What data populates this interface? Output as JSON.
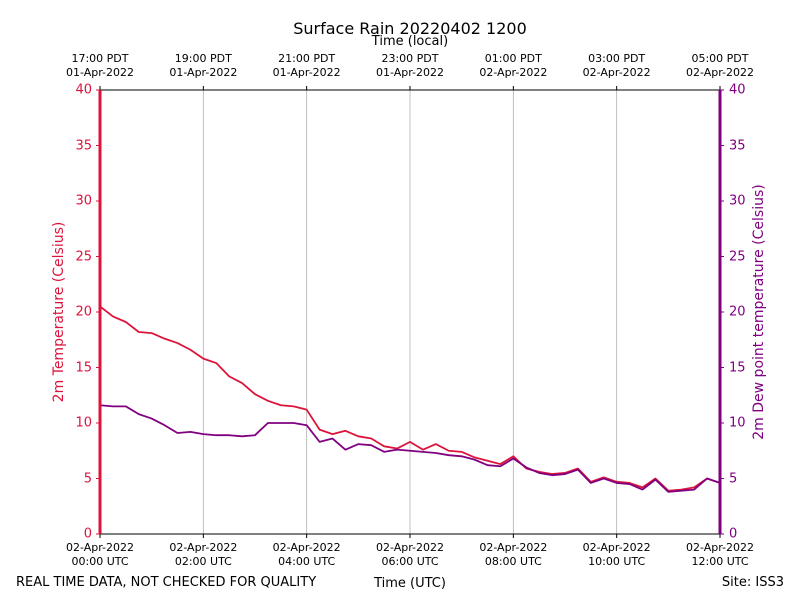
{
  "chart_data": {
    "type": "line",
    "title": "Surface Rain 20220402 1200",
    "xlabel": "Time (UTC)",
    "x2label": "Time (local)",
    "ylabel": "2m Temperature (Celsius)",
    "y2label": "2m Dew point temperature (Celsius)",
    "footer_left": "REAL TIME DATA, NOT CHECKED FOR QUALITY",
    "footer_right": "Site: ISS3",
    "grid": true,
    "xlim": [
      "2022-04-02T00:00Z",
      "2022-04-02T12:00Z"
    ],
    "xticks": [
      {
        "value": "2022-04-02T00:00Z",
        "label": "02-Apr-2022\n00:00 UTC"
      },
      {
        "value": "2022-04-02T02:00Z",
        "label": "02-Apr-2022\n02:00 UTC"
      },
      {
        "value": "2022-04-02T04:00Z",
        "label": "02-Apr-2022\n04:00 UTC"
      },
      {
        "value": "2022-04-02T06:00Z",
        "label": "02-Apr-2022\n06:00 UTC"
      },
      {
        "value": "2022-04-02T08:00Z",
        "label": "02-Apr-2022\n08:00 UTC"
      },
      {
        "value": "2022-04-02T10:00Z",
        "label": "02-Apr-2022\n10:00 UTC"
      },
      {
        "value": "2022-04-02T12:00Z",
        "label": "02-Apr-2022\n12:00 UTC"
      }
    ],
    "x2ticks": [
      {
        "value": "2022-04-02T00:00Z",
        "label": "17:00 PDT\n01-Apr-2022"
      },
      {
        "value": "2022-04-02T02:00Z",
        "label": "19:00 PDT\n01-Apr-2022"
      },
      {
        "value": "2022-04-02T04:00Z",
        "label": "21:00 PDT\n01-Apr-2022"
      },
      {
        "value": "2022-04-02T06:00Z",
        "label": "23:00 PDT\n01-Apr-2022"
      },
      {
        "value": "2022-04-02T08:00Z",
        "label": "01:00 PDT\n02-Apr-2022"
      },
      {
        "value": "2022-04-02T10:00Z",
        "label": "03:00 PDT\n02-Apr-2022"
      },
      {
        "value": "2022-04-02T12:00Z",
        "label": "05:00 PDT\n02-Apr-2022"
      }
    ],
    "ylim": [
      0,
      40
    ],
    "yticks": [
      0,
      5,
      10,
      15,
      20,
      25,
      30,
      35,
      40
    ],
    "ycolor": "#dc143c",
    "y2lim": [
      0,
      40
    ],
    "y2ticks": [
      0,
      5,
      10,
      15,
      20,
      25,
      30,
      35,
      40
    ],
    "y2color": "#800080",
    "x": [
      "2022-04-02T00:00Z",
      "2022-04-02T00:15Z",
      "2022-04-02T00:30Z",
      "2022-04-02T00:45Z",
      "2022-04-02T01:00Z",
      "2022-04-02T01:15Z",
      "2022-04-02T01:30Z",
      "2022-04-02T01:45Z",
      "2022-04-02T02:00Z",
      "2022-04-02T02:15Z",
      "2022-04-02T02:30Z",
      "2022-04-02T02:45Z",
      "2022-04-02T03:00Z",
      "2022-04-02T03:15Z",
      "2022-04-02T03:30Z",
      "2022-04-02T03:45Z",
      "2022-04-02T04:00Z",
      "2022-04-02T04:15Z",
      "2022-04-02T04:30Z",
      "2022-04-02T04:45Z",
      "2022-04-02T05:00Z",
      "2022-04-02T05:15Z",
      "2022-04-02T05:30Z",
      "2022-04-02T05:45Z",
      "2022-04-02T06:00Z",
      "2022-04-02T06:15Z",
      "2022-04-02T06:30Z",
      "2022-04-02T06:45Z",
      "2022-04-02T07:00Z",
      "2022-04-02T07:15Z",
      "2022-04-02T07:30Z",
      "2022-04-02T07:45Z",
      "2022-04-02T08:00Z",
      "2022-04-02T08:15Z",
      "2022-04-02T08:30Z",
      "2022-04-02T08:45Z",
      "2022-04-02T09:00Z",
      "2022-04-02T09:15Z",
      "2022-04-02T09:30Z",
      "2022-04-02T09:45Z",
      "2022-04-02T10:00Z",
      "2022-04-02T10:15Z",
      "2022-04-02T10:30Z",
      "2022-04-02T10:45Z",
      "2022-04-02T11:00Z",
      "2022-04-02T11:15Z",
      "2022-04-02T11:30Z",
      "2022-04-02T11:45Z",
      "2022-04-02T12:00Z"
    ],
    "series": [
      {
        "name": "2m Temperature",
        "color": "#dc143c",
        "axis": "y",
        "values": [
          20.5,
          19.6,
          19.1,
          18.2,
          18.1,
          17.6,
          17.2,
          16.6,
          15.8,
          15.4,
          14.2,
          13.6,
          12.6,
          12.0,
          11.6,
          11.5,
          11.2,
          9.4,
          9.0,
          9.3,
          8.8,
          8.6,
          7.9,
          7.7,
          8.3,
          7.6,
          8.1,
          7.5,
          7.4,
          6.9,
          6.6,
          6.3,
          7.0,
          5.9,
          5.6,
          5.4,
          5.5,
          5.9,
          4.7,
          5.1,
          4.7,
          4.6,
          4.2,
          5.0,
          3.9,
          4.0,
          4.2,
          5.0,
          4.6
        ]
      },
      {
        "name": "2m Dew point temperature",
        "color": "#800080",
        "axis": "y2",
        "values": [
          11.6,
          11.5,
          11.5,
          10.8,
          10.4,
          9.8,
          9.1,
          9.2,
          9.0,
          8.9,
          8.9,
          8.8,
          8.9,
          10.0,
          10.0,
          10.0,
          9.8,
          8.3,
          8.6,
          7.6,
          8.1,
          8.0,
          7.4,
          7.6,
          7.5,
          7.4,
          7.3,
          7.1,
          7.0,
          6.7,
          6.2,
          6.1,
          6.8,
          6.0,
          5.5,
          5.3,
          5.4,
          5.8,
          4.6,
          5.0,
          4.6,
          4.5,
          4.0,
          4.9,
          3.8,
          3.9,
          4.0,
          5.0,
          4.6
        ]
      }
    ]
  }
}
